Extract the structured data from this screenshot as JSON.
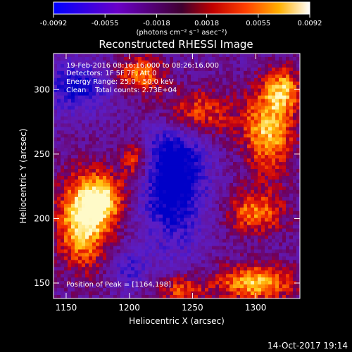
{
  "chart_data": {
    "type": "heatmap",
    "title": "Reconstructed RHESSI Image",
    "xlabel": "Heliocentric X (arcsec)",
    "ylabel": "Heliocentric Y (arcsec)",
    "xlim": [
      1140,
      1335
    ],
    "ylim": [
      138,
      328
    ],
    "x_ticks": [
      {
        "value": 1150,
        "label": "1150"
      },
      {
        "value": 1200,
        "label": "1200"
      },
      {
        "value": 1250,
        "label": "1250"
      },
      {
        "value": 1300,
        "label": "1300"
      }
    ],
    "y_ticks": [
      {
        "value": 150,
        "label": "150"
      },
      {
        "value": 200,
        "label": "200"
      },
      {
        "value": 250,
        "label": "250"
      },
      {
        "value": 300,
        "label": "300"
      }
    ],
    "colorbar": {
      "min": -0.0092,
      "max": 0.0092,
      "tick_labels": [
        "-0.0092",
        "-0.0055",
        "-0.0018",
        "0.0018",
        "0.0055",
        "0.0092"
      ],
      "tick_values": [
        -0.0092,
        -0.0055,
        -0.0018,
        0.0018,
        0.0055,
        0.0092
      ],
      "unit_label": "(photons cm⁻² s⁻¹ asec⁻²)"
    },
    "annotations": {
      "time_range": "19-Feb-2016 08:16:16.000 to 08:26:16.000",
      "detectors": "Detectors: 1F 5F 7F, Att 0",
      "energy_range": "Energy Range: 25.0 - 50.0 keV",
      "method": "Clean    Total counts: 2.73E+04",
      "peak": "Position of Peak = [1164,198]"
    },
    "bright_regions": [
      {
        "x": 1163,
        "y": 198,
        "sx": 14,
        "sy": 24,
        "amp": 1.0
      },
      {
        "x": 1180,
        "y": 215,
        "sx": 12,
        "sy": 14,
        "amp": 0.75
      },
      {
        "x": 1210,
        "y": 312,
        "sx": 14,
        "sy": 10,
        "amp": 0.7
      },
      {
        "x": 1248,
        "y": 282,
        "sx": 22,
        "sy": 14,
        "amp": 0.75
      },
      {
        "x": 1310,
        "y": 268,
        "sx": 14,
        "sy": 22,
        "amp": 0.85
      },
      {
        "x": 1322,
        "y": 300,
        "sx": 10,
        "sy": 12,
        "amp": 0.7
      },
      {
        "x": 1300,
        "y": 150,
        "sx": 22,
        "sy": 10,
        "amp": 0.85
      },
      {
        "x": 1240,
        "y": 145,
        "sx": 14,
        "sy": 8,
        "amp": 0.55
      },
      {
        "x": 1300,
        "y": 205,
        "sx": 16,
        "sy": 12,
        "amp": 0.65
      },
      {
        "x": 1205,
        "y": 245,
        "sx": 8,
        "sy": 12,
        "amp": 0.6
      }
    ],
    "dark_regions": [
      {
        "x": 1235,
        "y": 235,
        "sx": 18,
        "sy": 38,
        "amp": 0.9
      },
      {
        "x": 1158,
        "y": 302,
        "sx": 18,
        "sy": 14,
        "amp": 0.6
      },
      {
        "x": 1200,
        "y": 160,
        "sx": 10,
        "sy": 10,
        "amp": 0.4
      }
    ]
  },
  "footer": {
    "date_stamp": "14-Oct-2017 19:14"
  }
}
